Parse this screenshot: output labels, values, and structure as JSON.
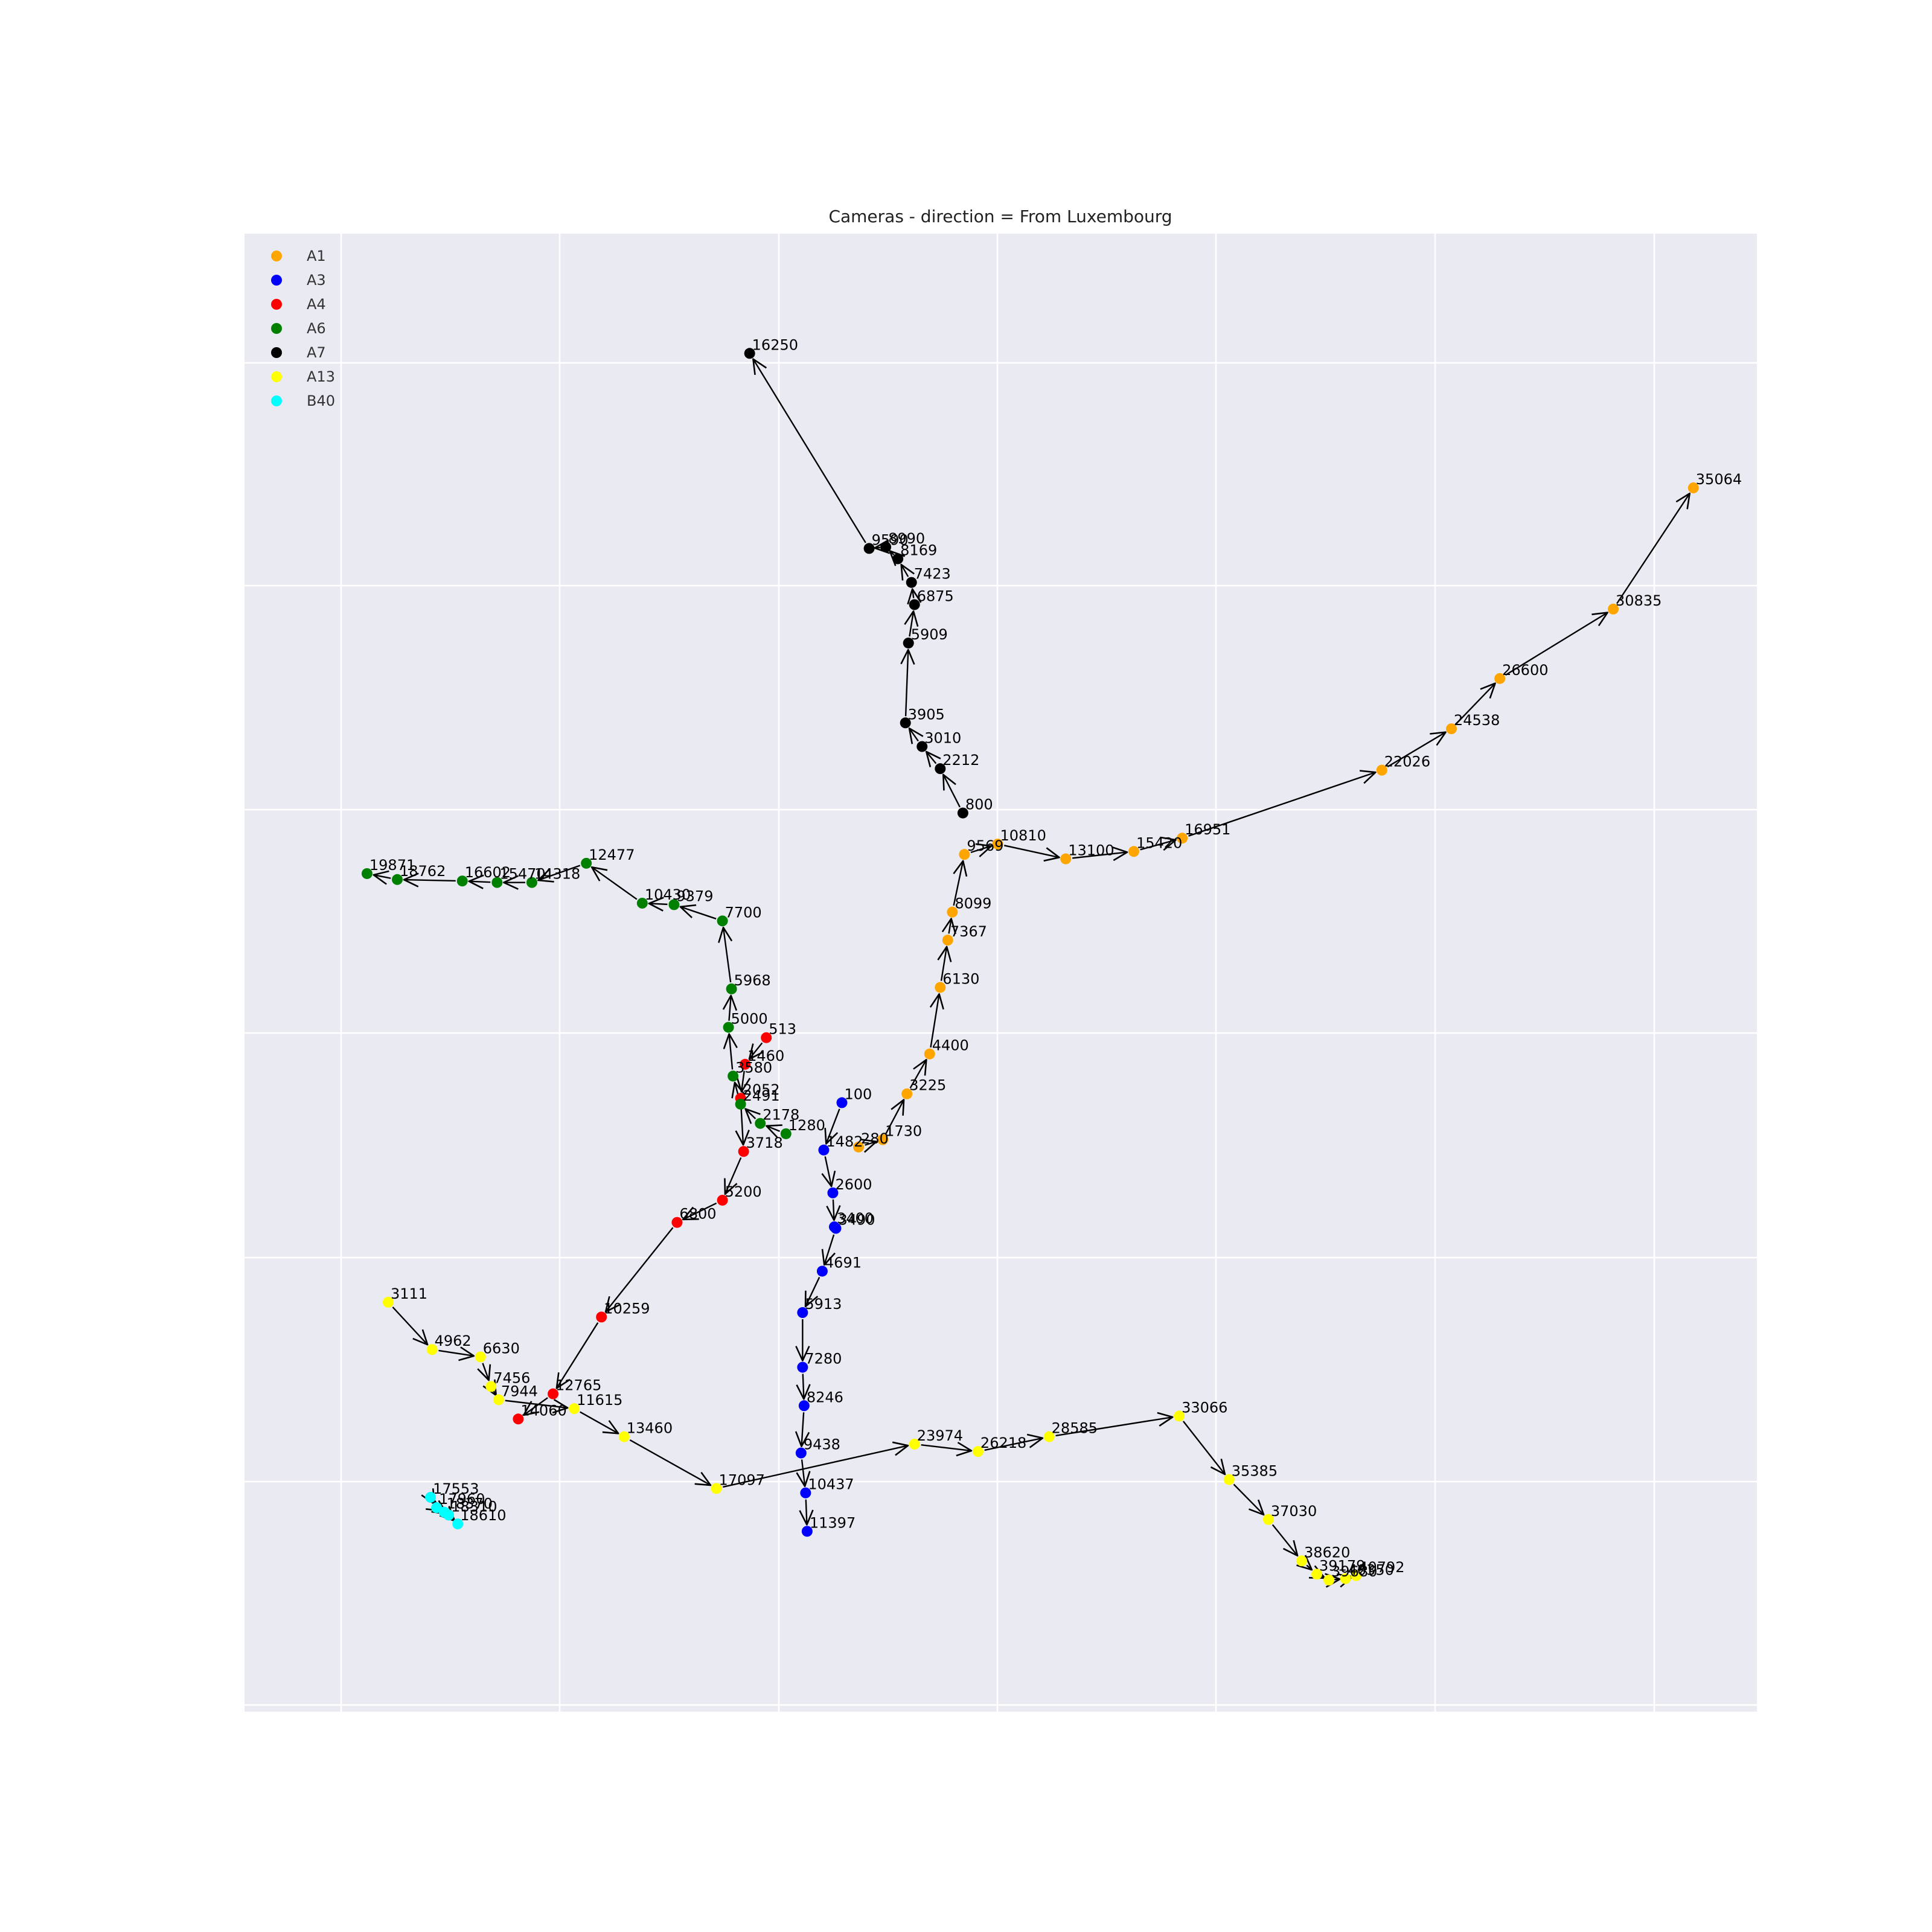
{
  "chart_data": {
    "type": "scatter",
    "title": "Cameras - direction = From Luxembourg",
    "xlabel": "",
    "ylabel": "",
    "xlim": [
      0,
      1000
    ],
    "ylim": [
      0,
      1000
    ],
    "grid": true,
    "legend_placement": "top-left",
    "background": "#eaeaf2",
    "arrow_color": "#000000",
    "series": [
      {
        "name": "A1",
        "color": "#ffa500",
        "points": [
          {
            "label": "280",
            "x": 406,
            "y": 382
          },
          {
            "label": "1730",
            "x": 422,
            "y": 387
          },
          {
            "label": "3225",
            "x": 438,
            "y": 418
          },
          {
            "label": "4400",
            "x": 453,
            "y": 445
          },
          {
            "label": "6130",
            "x": 460,
            "y": 490
          },
          {
            "label": "7367",
            "x": 465,
            "y": 522
          },
          {
            "label": "8099",
            "x": 468,
            "y": 541
          },
          {
            "label": "9569",
            "x": 476,
            "y": 580
          },
          {
            "label": "10810",
            "x": 498,
            "y": 587
          },
          {
            "label": "13100",
            "x": 543,
            "y": 577
          },
          {
            "label": "15420",
            "x": 588,
            "y": 582
          },
          {
            "label": "16951",
            "x": 620,
            "y": 591
          },
          {
            "label": "22026",
            "x": 752,
            "y": 637
          },
          {
            "label": "24538",
            "x": 798,
            "y": 665
          },
          {
            "label": "26600",
            "x": 830,
            "y": 699
          },
          {
            "label": "30835",
            "x": 905,
            "y": 746
          },
          {
            "label": "35064",
            "x": 958,
            "y": 828
          }
        ]
      },
      {
        "name": "A3",
        "color": "#0000ff",
        "points": [
          {
            "label": "100",
            "x": 395,
            "y": 412
          },
          {
            "label": "1482",
            "x": 383,
            "y": 380
          },
          {
            "label": "2600",
            "x": 389,
            "y": 351
          },
          {
            "label": "3400",
            "x": 390,
            "y": 328
          },
          {
            "label": "3490",
            "x": 391,
            "y": 327
          },
          {
            "label": "4691",
            "x": 382,
            "y": 298
          },
          {
            "label": "5913",
            "x": 369,
            "y": 270
          },
          {
            "label": "7280",
            "x": 369,
            "y": 233
          },
          {
            "label": "8246",
            "x": 370,
            "y": 207
          },
          {
            "label": "9438",
            "x": 368,
            "y": 175
          },
          {
            "label": "10437",
            "x": 371,
            "y": 148
          },
          {
            "label": "11397",
            "x": 372,
            "y": 122
          }
        ]
      },
      {
        "name": "A4",
        "color": "#ff0000",
        "points": [
          {
            "label": "513",
            "x": 345,
            "y": 456
          },
          {
            "label": "1460",
            "x": 331,
            "y": 438
          },
          {
            "label": "2052",
            "x": 328,
            "y": 415
          },
          {
            "label": "3718",
            "x": 330,
            "y": 379
          },
          {
            "label": "5200",
            "x": 316,
            "y": 346
          },
          {
            "label": "6800",
            "x": 286,
            "y": 331
          },
          {
            "label": "10259",
            "x": 236,
            "y": 267
          },
          {
            "label": "12765",
            "x": 204,
            "y": 215
          },
          {
            "label": "14060",
            "x": 181,
            "y": 198
          }
        ]
      },
      {
        "name": "A6",
        "color": "#008000",
        "points": [
          {
            "label": "1280",
            "x": 358,
            "y": 391
          },
          {
            "label": "2178",
            "x": 341,
            "y": 398
          },
          {
            "label": "2491",
            "x": 328,
            "y": 411
          },
          {
            "label": "3580",
            "x": 323,
            "y": 430
          },
          {
            "label": "5000",
            "x": 320,
            "y": 463
          },
          {
            "label": "5968",
            "x": 322,
            "y": 489
          },
          {
            "label": "7700",
            "x": 316,
            "y": 535
          },
          {
            "label": "9379",
            "x": 284,
            "y": 546
          },
          {
            "label": "10430",
            "x": 263,
            "y": 547
          },
          {
            "label": "12477",
            "x": 226,
            "y": 574
          },
          {
            "label": "14318",
            "x": 190,
            "y": 561
          },
          {
            "label": "15470",
            "x": 167,
            "y": 561
          },
          {
            "label": "16602",
            "x": 144,
            "y": 562
          },
          {
            "label": "18762",
            "x": 101,
            "y": 563
          },
          {
            "label": "19871",
            "x": 81,
            "y": 567
          }
        ]
      },
      {
        "name": "A7",
        "color": "#000000",
        "points": [
          {
            "label": "800",
            "x": 475,
            "y": 608
          },
          {
            "label": "2212",
            "x": 460,
            "y": 638
          },
          {
            "label": "3010",
            "x": 448,
            "y": 653
          },
          {
            "label": "3905",
            "x": 437,
            "y": 669
          },
          {
            "label": "5909",
            "x": 439,
            "y": 723
          },
          {
            "label": "6875",
            "x": 443,
            "y": 749
          },
          {
            "label": "7423",
            "x": 441,
            "y": 764
          },
          {
            "label": "8169",
            "x": 432,
            "y": 780
          },
          {
            "label": "8990",
            "x": 424,
            "y": 788
          },
          {
            "label": "9590",
            "x": 413,
            "y": 787
          },
          {
            "label": "16250",
            "x": 334,
            "y": 919
          }
        ]
      },
      {
        "name": "A13",
        "color": "#ffff00",
        "points": [
          {
            "label": "3111",
            "x": 95,
            "y": 277
          },
          {
            "label": "4962",
            "x": 124,
            "y": 245
          },
          {
            "label": "6630",
            "x": 156,
            "y": 240
          },
          {
            "label": "7456",
            "x": 163,
            "y": 220
          },
          {
            "label": "7944",
            "x": 168,
            "y": 211
          },
          {
            "label": "11615",
            "x": 218,
            "y": 205
          },
          {
            "label": "13460",
            "x": 251,
            "y": 186
          },
          {
            "label": "17097",
            "x": 312,
            "y": 151
          },
          {
            "label": "23974",
            "x": 443,
            "y": 181
          },
          {
            "label": "26218",
            "x": 485,
            "y": 176
          },
          {
            "label": "28585",
            "x": 532,
            "y": 186
          },
          {
            "label": "33066",
            "x": 618,
            "y": 200
          },
          {
            "label": "35385",
            "x": 651,
            "y": 157
          },
          {
            "label": "37030",
            "x": 677,
            "y": 130
          },
          {
            "label": "38620",
            "x": 699,
            "y": 102
          },
          {
            "label": "39179",
            "x": 709,
            "y": 93
          },
          {
            "label": "39680",
            "x": 717,
            "y": 89
          },
          {
            "label": "40350",
            "x": 728,
            "y": 90
          },
          {
            "label": "40792",
            "x": 735,
            "y": 92
          }
        ]
      },
      {
        "name": "B40",
        "color": "#00ffff",
        "points": [
          {
            "label": "17553",
            "x": 123,
            "y": 145
          },
          {
            "label": "17960",
            "x": 127,
            "y": 138
          },
          {
            "label": "18370",
            "x": 132,
            "y": 135
          },
          {
            "label": "18310",
            "x": 135,
            "y": 133
          },
          {
            "label": "18610",
            "x": 141,
            "y": 127
          }
        ]
      }
    ]
  }
}
